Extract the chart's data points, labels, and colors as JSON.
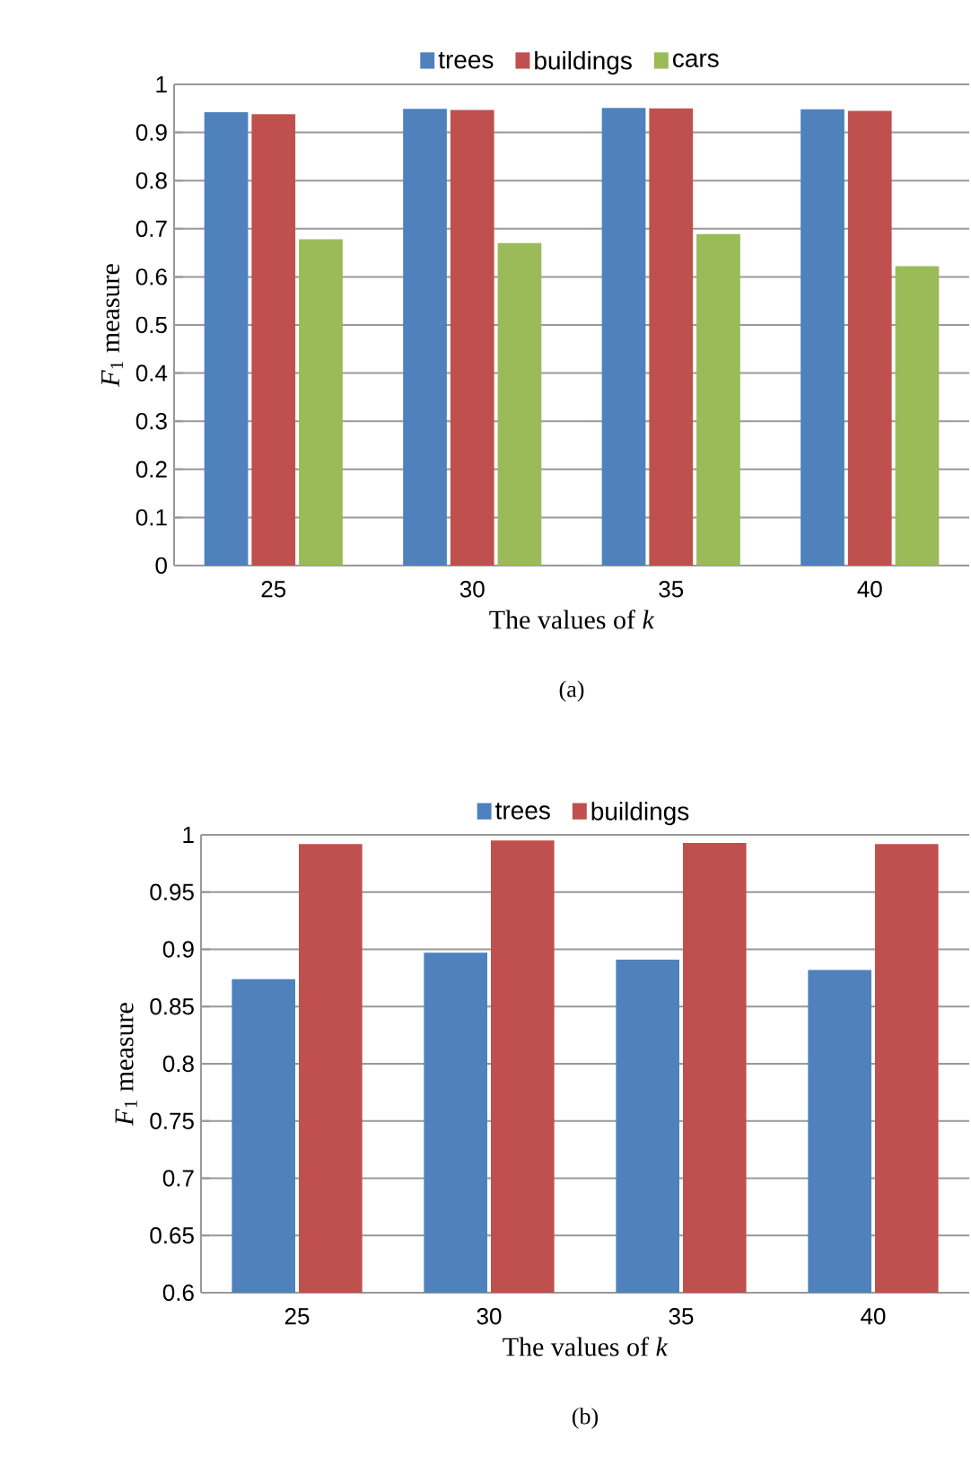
{
  "chart_data": [
    {
      "type": "bar",
      "xlabel": "The values of *k*",
      "ylabel": "*F*$_{1}$ measure",
      "categories": [
        "25",
        "30",
        "35",
        "40"
      ],
      "series": [
        {
          "name": "trees",
          "color": "#4f81bd",
          "values": [
            0.942,
            0.949,
            0.951,
            0.948
          ]
        },
        {
          "name": "buildings",
          "color": "#c0504d",
          "values": [
            0.938,
            0.947,
            0.95,
            0.945
          ]
        },
        {
          "name": "cars",
          "color": "#9bbb59",
          "values": [
            0.678,
            0.67,
            0.689,
            0.622
          ]
        }
      ],
      "ylim": [
        0,
        1
      ],
      "yticks": [
        0,
        0.1,
        0.2,
        0.3,
        0.4,
        0.5,
        0.6,
        0.7,
        0.8,
        0.9,
        1
      ],
      "grid": "y",
      "legend": "top",
      "annotations": [
        "(a)"
      ]
    },
    {
      "type": "bar",
      "xlabel": "The values of *k*",
      "ylabel": "*F*$_{1}$ measure",
      "categories": [
        "25",
        "30",
        "35",
        "40"
      ],
      "series": [
        {
          "name": "trees",
          "color": "#4f81bd",
          "values": [
            0.874,
            0.897,
            0.891,
            0.882
          ]
        },
        {
          "name": "buildings",
          "color": "#c0504d",
          "values": [
            0.992,
            0.995,
            0.993,
            0.992
          ]
        }
      ],
      "ylim": [
        0.6,
        1
      ],
      "yticks": [
        0.6,
        0.65,
        0.7,
        0.75,
        0.8,
        0.85,
        0.9,
        0.95,
        1
      ],
      "grid": "y",
      "legend": "top",
      "annotations": [
        "(b)"
      ]
    }
  ]
}
